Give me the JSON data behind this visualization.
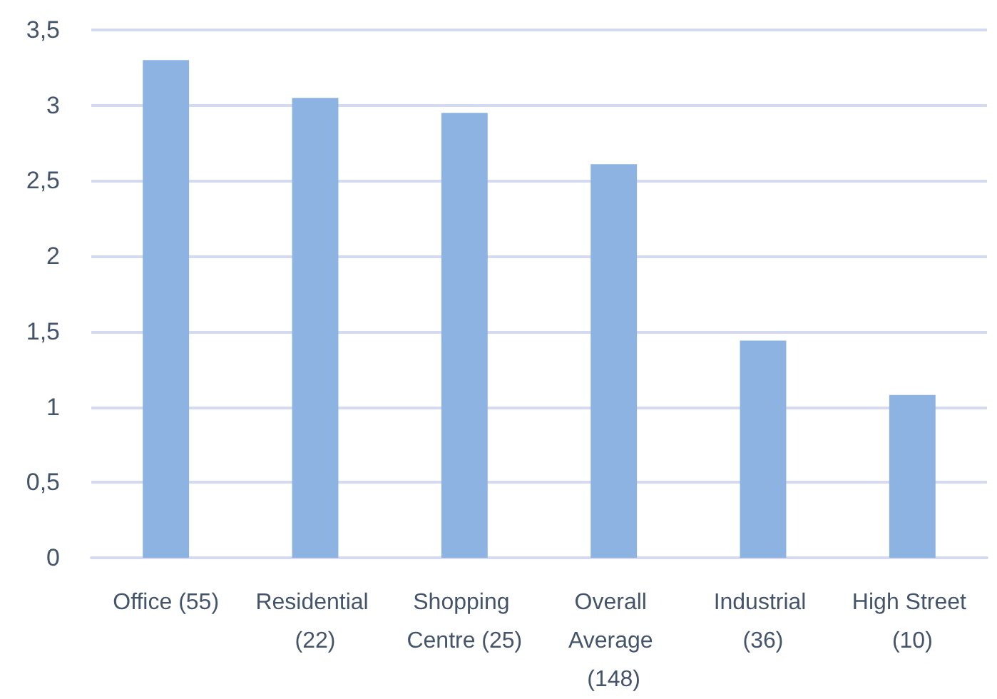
{
  "chart_data": {
    "type": "bar",
    "categories": [
      "Office (55)",
      "Residential (22)",
      "Shopping Centre (25)",
      "Overall Average (148)",
      "Industrial (36)",
      "High Street (10)"
    ],
    "values": [
      3.3,
      3.05,
      2.95,
      2.61,
      1.44,
      1.08
    ],
    "color": "#8db3e2",
    "ylim": [
      0,
      3.5
    ],
    "yticks": [
      0,
      {
        "value": 0.5,
        "label": "0,5"
      },
      1,
      {
        "value": 1.5,
        "label": "1,5"
      },
      2,
      {
        "value": 2.5,
        "label": "2,5"
      },
      3,
      {
        "value": 3.5,
        "label": "3,5"
      }
    ],
    "grid": "y"
  }
}
